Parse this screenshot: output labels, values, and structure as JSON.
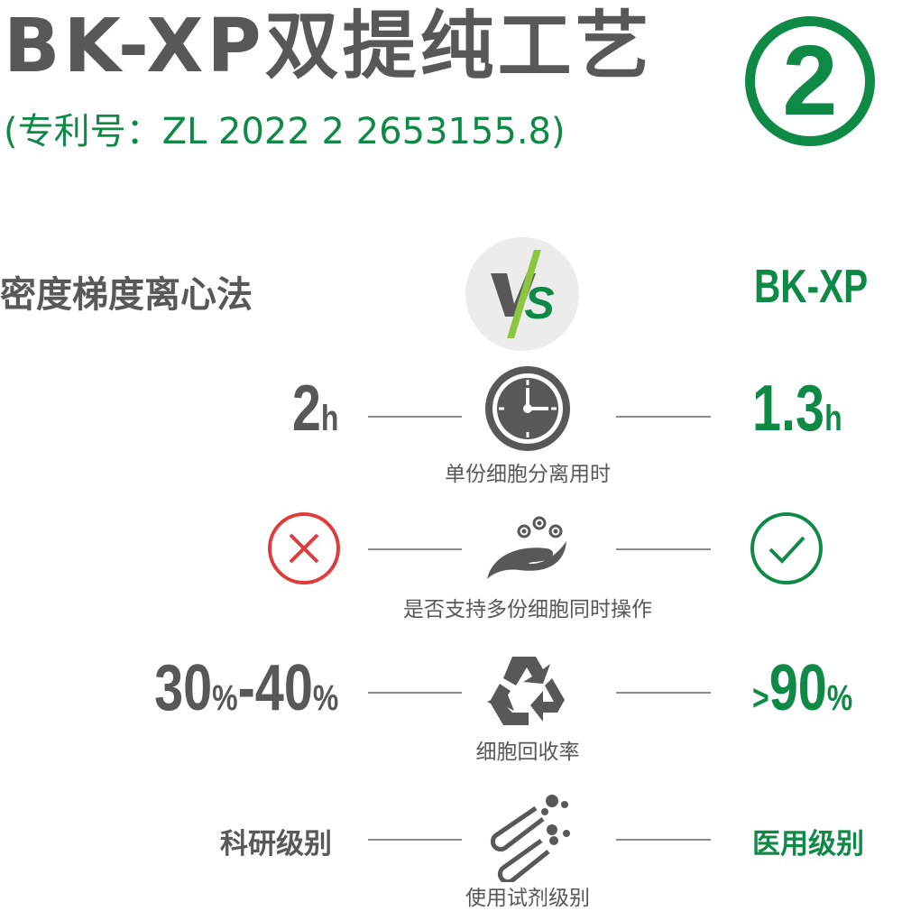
{
  "header": {
    "title": "BK-XP双提纯工艺",
    "patent": "(专利号：ZL 2022 2 2653155.8)",
    "badge_number": "2"
  },
  "comparison": {
    "left_heading": "密度梯度离心法",
    "vs_label": "VS",
    "right_heading": "BK-XP",
    "rows": [
      {
        "label": "单份细胞分离用时",
        "icon": "clock-icon",
        "left": {
          "num": "2",
          "unit": "h"
        },
        "right": {
          "num": "1.3",
          "unit": "h"
        }
      },
      {
        "label": "是否支持多份细胞同时操作",
        "icon": "hand-cells-icon",
        "left_icon": "cross-circle-icon",
        "right_icon": "check-circle-icon"
      },
      {
        "label": "细胞回收率",
        "icon": "recycle-icon",
        "left": {
          "a": "30",
          "pa": "%",
          "b": "-40",
          "pb": "%"
        },
        "right": {
          "gt": ">",
          "num": "90",
          "unit": "%"
        }
      },
      {
        "label": "使用试剂级别",
        "icon": "test-tubes-icon",
        "left_text": "科研级别",
        "right_text": "医用级别"
      }
    ]
  },
  "colors": {
    "gray": "#595757",
    "green": "#0f8a46",
    "lime": "#8cc63f",
    "red": "#e03c3c",
    "vs_bg": "#ececec"
  }
}
